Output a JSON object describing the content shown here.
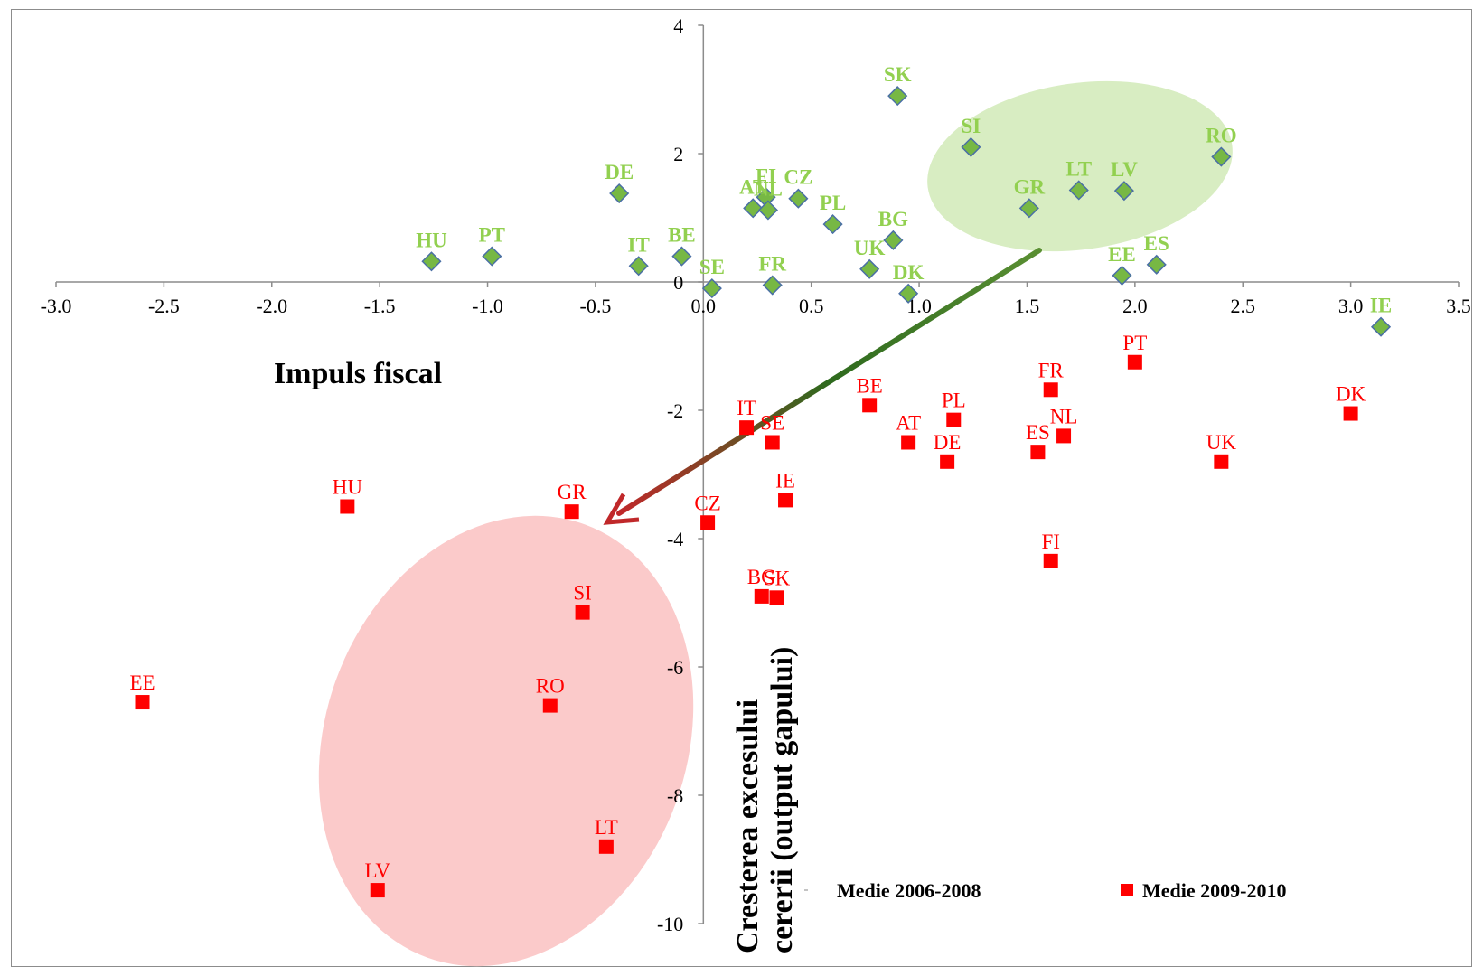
{
  "chart_data": {
    "type": "scatter",
    "xlabel": "Impuls fiscal",
    "ylabel_lines": [
      "Cresterea excesului",
      "cererii (output gapului)"
    ],
    "xlim": [
      -3.0,
      3.5
    ],
    "ylim": [
      -10,
      4
    ],
    "x_ticks": [
      "-3.0",
      "-2.5",
      "-2.0",
      "-1.5",
      "-1.0",
      "-0.5",
      "0.0",
      "0.5",
      "1.0",
      "1.5",
      "2.0",
      "2.5",
      "3.0",
      "3.5"
    ],
    "y_ticks": [
      "4",
      "2",
      "0",
      "-2",
      "-4",
      "-6",
      "-8",
      "-10"
    ],
    "grid": false,
    "legend_position": "bottom-right",
    "colors": {
      "series_2006": "#77b844",
      "series_2006_edge": "#4a6fa5",
      "label_2006": "#92d050",
      "series_2009": "#ff0000",
      "ellipse_green": "#d8edc2",
      "ellipse_red": "#fbcaca",
      "arrow_start": "#4f7d2a",
      "arrow_end": "#c0282a"
    },
    "series": [
      {
        "name": "Medie 2006-2008",
        "marker": "diamond",
        "points": [
          {
            "label": "SK",
            "x": 0.9,
            "y": 2.9
          },
          {
            "label": "SI",
            "x": 1.24,
            "y": 2.1
          },
          {
            "label": "RO",
            "x": 2.4,
            "y": 1.95
          },
          {
            "label": "DE",
            "x": -0.39,
            "y": 1.38
          },
          {
            "label": "FI",
            "x": 0.29,
            "y": 1.32
          },
          {
            "label": "CZ",
            "x": 0.44,
            "y": 1.3
          },
          {
            "label": "AT",
            "x": 0.23,
            "y": 1.15
          },
          {
            "label": "NL",
            "x": 0.3,
            "y": 1.12
          },
          {
            "label": "LT",
            "x": 1.74,
            "y": 1.43
          },
          {
            "label": "LV",
            "x": 1.95,
            "y": 1.42
          },
          {
            "label": "GR",
            "x": 1.51,
            "y": 1.15
          },
          {
            "label": "PL",
            "x": 0.6,
            "y": 0.9
          },
          {
            "label": "BG",
            "x": 0.88,
            "y": 0.65
          },
          {
            "label": "HU",
            "x": -1.26,
            "y": 0.32
          },
          {
            "label": "PT",
            "x": -0.98,
            "y": 0.4
          },
          {
            "label": "IT",
            "x": -0.3,
            "y": 0.25
          },
          {
            "label": "BE",
            "x": -0.1,
            "y": 0.4
          },
          {
            "label": "UK",
            "x": 0.77,
            "y": 0.2
          },
          {
            "label": "EE",
            "x": 1.94,
            "y": 0.1
          },
          {
            "label": "ES",
            "x": 2.1,
            "y": 0.27
          },
          {
            "label": "SE",
            "x": 0.04,
            "y": -0.1
          },
          {
            "label": "FR",
            "x": 0.32,
            "y": -0.05
          },
          {
            "label": "DK",
            "x": 0.95,
            "y": -0.18
          },
          {
            "label": "IE",
            "x": 3.14,
            "y": -0.7
          }
        ]
      },
      {
        "name": "Medie 2009-2010",
        "marker": "square",
        "points": [
          {
            "label": "PT",
            "x": 2.0,
            "y": -1.25
          },
          {
            "label": "FR",
            "x": 1.61,
            "y": -1.68
          },
          {
            "label": "DK",
            "x": 3.0,
            "y": -2.05
          },
          {
            "label": "BE",
            "x": 0.77,
            "y": -1.92
          },
          {
            "label": "PL",
            "x": 1.16,
            "y": -2.15
          },
          {
            "label": "NL",
            "x": 1.67,
            "y": -2.4
          },
          {
            "label": "IT",
            "x": 0.2,
            "y": -2.27
          },
          {
            "label": "SE",
            "x": 0.32,
            "y": -2.5
          },
          {
            "label": "AT",
            "x": 0.95,
            "y": -2.5
          },
          {
            "label": "ES",
            "x": 1.55,
            "y": -2.65
          },
          {
            "label": "DE",
            "x": 1.13,
            "y": -2.8
          },
          {
            "label": "UK",
            "x": 2.4,
            "y": -2.8
          },
          {
            "label": "IE",
            "x": 0.38,
            "y": -3.4
          },
          {
            "label": "HU",
            "x": -1.65,
            "y": -3.5
          },
          {
            "label": "GR",
            "x": -0.61,
            "y": -3.58
          },
          {
            "label": "CZ",
            "x": 0.02,
            "y": -3.75
          },
          {
            "label": "FI",
            "x": 1.61,
            "y": -4.35
          },
          {
            "label": "BG",
            "x": 0.27,
            "y": -4.9
          },
          {
            "label": "SK",
            "x": 0.34,
            "y": -4.92
          },
          {
            "label": "SI",
            "x": -0.56,
            "y": -5.15
          },
          {
            "label": "EE",
            "x": -2.6,
            "y": -6.55
          },
          {
            "label": "RO",
            "x": -0.71,
            "y": -6.6
          },
          {
            "label": "LT",
            "x": -0.45,
            "y": -8.8
          },
          {
            "label": "LV",
            "x": -1.51,
            "y": -9.48
          }
        ]
      }
    ]
  }
}
